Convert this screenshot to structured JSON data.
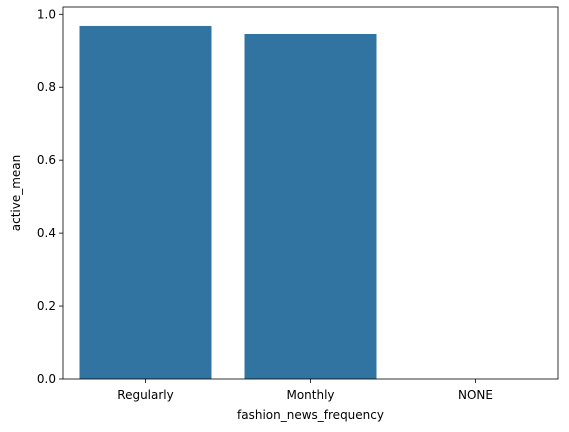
{
  "chart_data": {
    "type": "bar",
    "categories": [
      "Regularly",
      "Monthly",
      "NONE"
    ],
    "values": [
      0.968,
      0.946,
      0.0
    ],
    "xlabel": "fashion_news_frequency",
    "ylabel": "active_mean",
    "ylim": [
      0,
      1.02
    ],
    "yticks": [
      "0.0",
      "0.2",
      "0.4",
      "0.6",
      "0.8",
      "1.0"
    ],
    "grid": false,
    "bar_color": "#3274a1"
  }
}
